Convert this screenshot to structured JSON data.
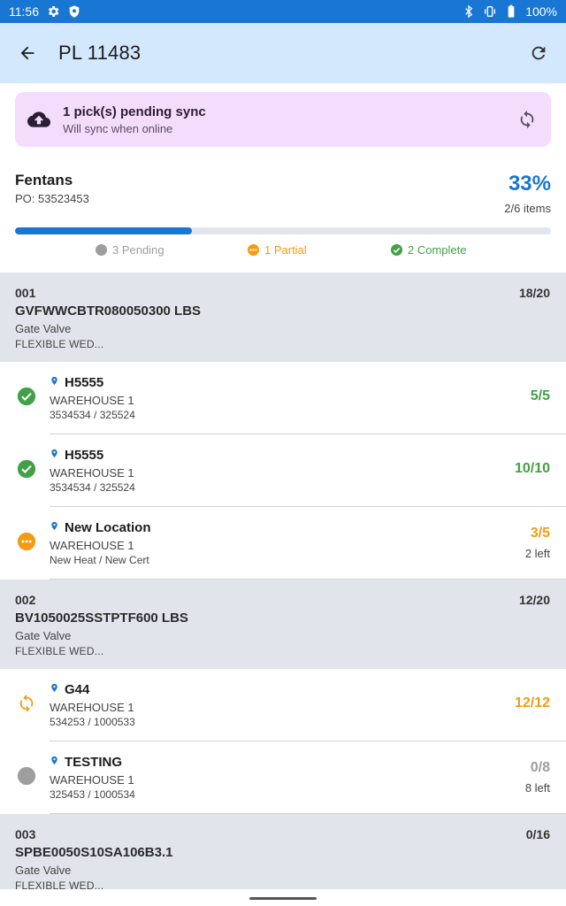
{
  "status_bar": {
    "time": "11:56",
    "left_icons": [
      "gear-icon",
      "shield-icon"
    ],
    "right_icons": [
      "bluetooth-icon",
      "vibrate-icon",
      "battery-icon"
    ],
    "battery": "100%",
    "bg_color": "#1976d2"
  },
  "app_bar": {
    "title": "PL 11483",
    "back_icon": "arrow-left-icon",
    "refresh_icon": "refresh-icon",
    "bg_color": "#d3e7fd"
  },
  "sync_banner": {
    "title": "1 pick(s) pending sync",
    "subtitle": "Will sync when online",
    "icon": "cloud-upload-icon",
    "action_icon": "sync-icon",
    "bg_color": "#f3dcfc"
  },
  "summary": {
    "vendor": "Fentans",
    "po": "PO: 53523453",
    "percent": "33%",
    "items": "2/6 items",
    "progress_fraction": 0.33
  },
  "legend": {
    "pending": "3 Pending",
    "partial": "1 Partial",
    "complete": "2 Complete"
  },
  "colors": {
    "accent": "#1976d2",
    "complete": "#43a047",
    "partial": "#f39c12",
    "pending": "#9e9e9e"
  },
  "groups": [
    {
      "num": "001",
      "code": "GVFWWCBTR080050300 LBS",
      "type": "Gate Valve",
      "desc": "FLEXIBLE WED...",
      "qty": "18/20",
      "rows": [
        {
          "status": "complete",
          "location": "H5555",
          "warehouse": "WAREHOUSE 1",
          "ids": "3534534 / 325524",
          "count": "5/5",
          "left": ""
        },
        {
          "status": "complete",
          "location": "H5555",
          "warehouse": "WAREHOUSE 1",
          "ids": "3534534 / 325524",
          "count": "10/10",
          "left": ""
        },
        {
          "status": "partial",
          "location": "New Location",
          "warehouse": "WAREHOUSE 1",
          "ids": "New Heat / New Cert",
          "count": "3/5",
          "left": "2 left"
        }
      ]
    },
    {
      "num": "002",
      "code": "BV1050025SSTPTF600 LBS",
      "type": "Gate Valve",
      "desc": "FLEXIBLE WED...",
      "qty": "12/20",
      "rows": [
        {
          "status": "syncing",
          "location": "G44",
          "warehouse": "WAREHOUSE 1",
          "ids": "534253 / 1000533",
          "count": "12/12",
          "left": ""
        },
        {
          "status": "pending",
          "location": "TESTING",
          "warehouse": "WAREHOUSE 1",
          "ids": "325453 / 1000534",
          "count": "0/8",
          "left": "8 left"
        }
      ]
    },
    {
      "num": "003",
      "code": "SPBE0050S10SA106B3.1",
      "type": "Gate Valve",
      "desc": "FLEXIBLE WED...",
      "qty": "0/16",
      "rows": []
    }
  ]
}
